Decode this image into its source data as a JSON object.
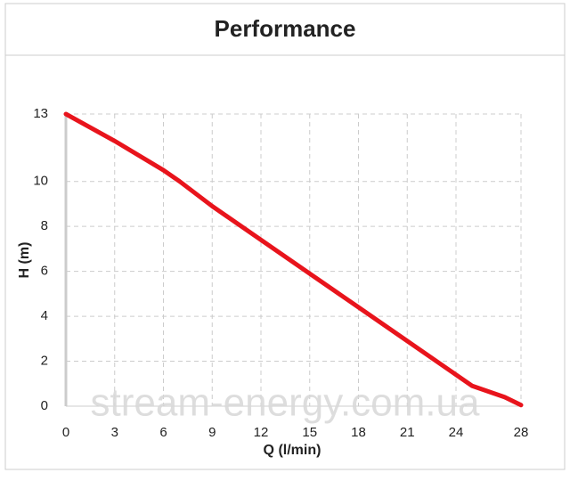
{
  "chart_data": {
    "type": "line",
    "title": "Performance",
    "x_label": "Q (l/min)",
    "y_label": "H (m)",
    "watermark": "stream-energy.com.ua",
    "x": [
      0,
      3,
      6,
      7,
      9,
      12,
      15,
      18,
      21,
      24,
      25,
      27,
      28
    ],
    "series": [
      {
        "color": "#e8141c",
        "values": [
          13,
          11.8,
          10.5,
          10,
          8.9,
          7.4,
          5.9,
          4.4,
          2.9,
          1.4,
          0.9,
          0.4,
          0.05
        ]
      }
    ],
    "xlim": [
      0,
      28
    ],
    "xticks": [
      0,
      3,
      6,
      9,
      12,
      15,
      18,
      21,
      24,
      28
    ],
    "ylim": [
      0,
      13
    ],
    "yticks": [
      0,
      2,
      4,
      6,
      8,
      10,
      13
    ],
    "grid": true
  }
}
